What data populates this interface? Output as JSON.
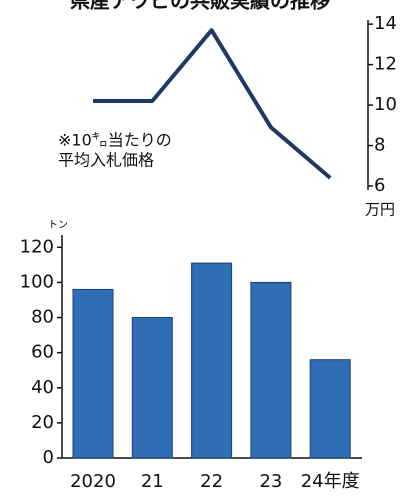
{
  "title": "県産アワビの共販実績の推移",
  "chart_data": [
    {
      "type": "line",
      "values": [
        10.2,
        10.2,
        13.7,
        8.9,
        6.4
      ],
      "color": "#1f3864",
      "ylim": [
        6,
        14.6
      ],
      "yticks": [
        6,
        8,
        10,
        12,
        14
      ],
      "y_axis_side": "right",
      "y_unit": "万円",
      "annotation": [
        "※10㌔当たりの",
        "平均入札価格"
      ]
    },
    {
      "type": "bar",
      "categories": [
        "2020",
        "21",
        "22",
        "23",
        "24年度"
      ],
      "values": [
        96,
        80,
        111,
        100,
        56
      ],
      "color": "#2f6db5",
      "ylim": [
        0,
        127
      ],
      "yticks": [
        0,
        20,
        40,
        60,
        80,
        100,
        120
      ],
      "y_unit": "トン"
    }
  ]
}
